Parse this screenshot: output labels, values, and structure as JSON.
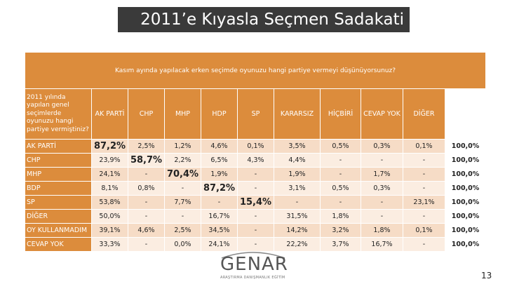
{
  "slide": {
    "title": "2011’e Kıyasla Seçmen Sadakati",
    "page_number": "13"
  },
  "table": {
    "top_question": "Kasım ayında yapılacak erken seçimde oyunuzu hangi partiye vermeyi düşünüyorsunuz?",
    "side_question": "2011 yılında yapılan genel seçimlerde oyunuzu hangi partiye vermiştiniz?",
    "columns": [
      "AK PARTİ",
      "CHP",
      "MHP",
      "HDP",
      "SP",
      "KARARSIZ",
      "HİÇBİRİ",
      "CEVAP YOK",
      "DİĞER"
    ],
    "rows": [
      {
        "label": "AK PARTİ",
        "cells": [
          "87,2%",
          "2,5%",
          "1,2%",
          "4,6%",
          "0,1%",
          "3,5%",
          "0,5%",
          "0,3%",
          "0,1%"
        ],
        "total": "100,0%",
        "highlight": 0
      },
      {
        "label": "CHP",
        "cells": [
          "23,9%",
          "58,7%",
          "2,2%",
          "6,5%",
          "4,3%",
          "4,4%",
          "-",
          "-",
          "-"
        ],
        "total": "100,0%",
        "highlight": 1
      },
      {
        "label": "MHP",
        "cells": [
          "24,1%",
          "-",
          "70,4%",
          "1,9%",
          "-",
          "1,9%",
          "-",
          "1,7%",
          "-"
        ],
        "total": "100,0%",
        "highlight": 2
      },
      {
        "label": "BDP",
        "cells": [
          "8,1%",
          "0,8%",
          "-",
          "87,2%",
          "-",
          "3,1%",
          "0,5%",
          "0,3%",
          "-"
        ],
        "total": "100,0%",
        "highlight": 3
      },
      {
        "label": "SP",
        "cells": [
          "53,8%",
          "-",
          "7,7%",
          "-",
          "15,4%",
          "-",
          "-",
          "-",
          "23,1%"
        ],
        "total": "100,0%",
        "highlight": 4
      },
      {
        "label": "DİĞER",
        "cells": [
          "50,0%",
          "-",
          "-",
          "16,7%",
          "-",
          "31,5%",
          "1,8%",
          "-",
          "-"
        ],
        "total": "100,0%",
        "highlight": -1
      },
      {
        "label": "OY KULLANMADIM",
        "cells": [
          "39,1%",
          "4,6%",
          "2,5%",
          "34,5%",
          "-",
          "14,2%",
          "3,2%",
          "1,8%",
          "0,1%"
        ],
        "total": "100,0%",
        "highlight": -1
      },
      {
        "label": "CEVAP YOK",
        "cells": [
          "33,3%",
          "-",
          "0,0%",
          "24,1%",
          "-",
          "22,2%",
          "3,7%",
          "16,7%",
          "-"
        ],
        "total": "100,0%",
        "highlight": -1
      }
    ]
  },
  "logo": {
    "name": "GENAR",
    "tagline": "ARAŞTIRMA DANIŞMANLIK EĞİTİM"
  },
  "colors": {
    "header_orange": "#dc8c3c",
    "title_bar": "#3a3a3a",
    "row_light": "#f6dcc6",
    "row_lighter": "#fbede1"
  }
}
